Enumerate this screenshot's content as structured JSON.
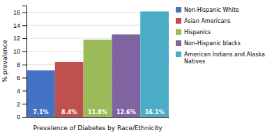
{
  "chart_data": {
    "type": "bar",
    "categories": [
      "Non-Hispanic White",
      "Asian Americans",
      "Hispanics",
      "Non-Hispanic blacks",
      "American Indians and Alaska\nNatives"
    ],
    "values": [
      7.1,
      8.4,
      11.8,
      12.6,
      16.1
    ],
    "value_labels": [
      "7.1%",
      "8.4%",
      "11.8%",
      "12.6%",
      "16.1%"
    ],
    "colors": [
      "#4472C4",
      "#C0504D",
      "#9BBB59",
      "#8064A2",
      "#4BACC6"
    ],
    "xlabel": "Prevalence of Diabetes by Race/Ethnicity",
    "ylabel": "% prevalence",
    "ylim": [
      0,
      17
    ],
    "yticks": [
      0,
      2,
      4,
      6,
      8,
      10,
      12,
      14,
      16
    ],
    "grid": true,
    "legend": "right",
    "data_labels": true,
    "tick_labels": "y"
  }
}
